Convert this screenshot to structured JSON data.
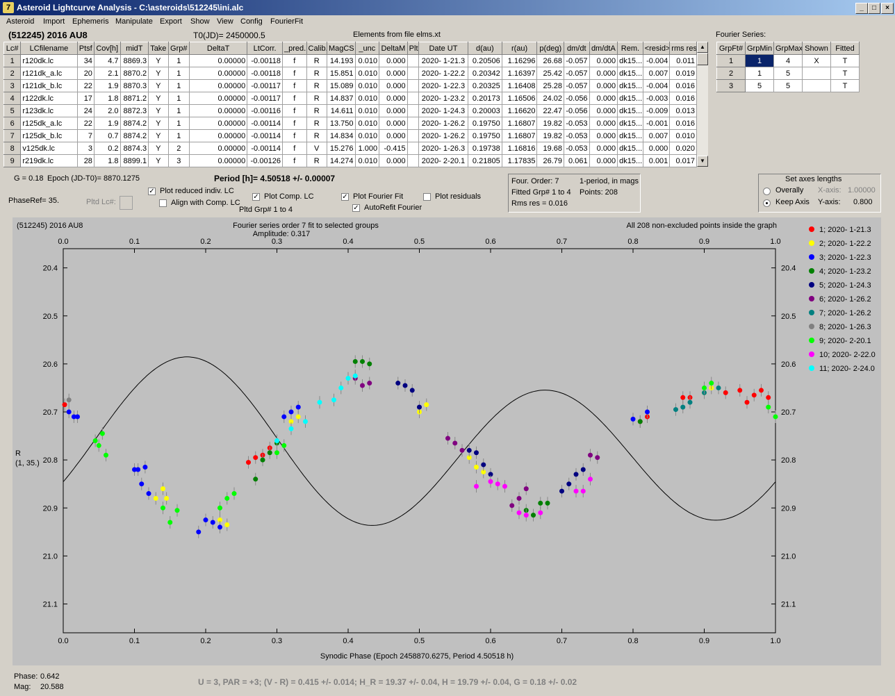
{
  "window": {
    "title": "Asteroid Lightcurve Analysis - C:\\asteroids\\512245\\ini.alc",
    "icon_label": "7"
  },
  "menu": [
    "Asteroid",
    "Import",
    "Ephemeris",
    "Manipulate",
    "Export",
    "Show",
    "View",
    "Config",
    "FourierFit"
  ],
  "header": {
    "asteroid": "(512245) 2016 AU8",
    "t0": "T0(JD)= 2450000.5",
    "elements": "Elements from file elms.xt",
    "fourier_series_label": "Fourier Series:"
  },
  "lc_table": {
    "columns": [
      "Lc#",
      "LCfilename",
      "Ptsf",
      "Cov[h]",
      "midT",
      "Take",
      "Grp#",
      "DeltaT",
      "LtCorr.",
      "_pred.",
      "Calib.",
      "MagCS",
      "_unc",
      "DeltaM",
      "Plt",
      "Date UT",
      "d(au)",
      "r(au)",
      "p(deg)",
      "dm/dt",
      "dm/dtA",
      "Rem.",
      "<resid>",
      "rms res"
    ],
    "rows": [
      [
        "1",
        "r120dk.lc",
        "34",
        "4.7",
        "8869.3",
        "Y",
        "1",
        "0.00000",
        "-0.00118",
        "f",
        "R",
        "14.193",
        "0.010",
        "0.000",
        "",
        "2020- 1-21.3",
        "0.20506",
        "1.16296",
        "26.68",
        "-0.057",
        "0.000",
        "dk15...",
        "-0.004",
        "0.011"
      ],
      [
        "2",
        "r121dk_a.lc",
        "20",
        "2.1",
        "8870.2",
        "Y",
        "1",
        "0.00000",
        "-0.00118",
        "f",
        "R",
        "15.851",
        "0.010",
        "0.000",
        "",
        "2020- 1-22.2",
        "0.20342",
        "1.16397",
        "25.42",
        "-0.057",
        "0.000",
        "dk15...",
        "0.007",
        "0.019"
      ],
      [
        "3",
        "r121dk_b.lc",
        "22",
        "1.9",
        "8870.3",
        "Y",
        "1",
        "0.00000",
        "-0.00117",
        "f",
        "R",
        "15.089",
        "0.010",
        "0.000",
        "",
        "2020- 1-22.3",
        "0.20325",
        "1.16408",
        "25.28",
        "-0.057",
        "0.000",
        "dk15...",
        "-0.004",
        "0.016"
      ],
      [
        "4",
        "r122dk.lc",
        "17",
        "1.8",
        "8871.2",
        "Y",
        "1",
        "0.00000",
        "-0.00117",
        "f",
        "R",
        "14.837",
        "0.010",
        "0.000",
        "",
        "2020- 1-23.2",
        "0.20173",
        "1.16506",
        "24.02",
        "-0.056",
        "0.000",
        "dk15...",
        "-0.003",
        "0.016"
      ],
      [
        "5",
        "r123dk.lc",
        "24",
        "2.0",
        "8872.3",
        "Y",
        "1",
        "0.00000",
        "-0.00116",
        "f",
        "R",
        "14.611",
        "0.010",
        "0.000",
        "",
        "2020- 1-24.3",
        "0.20003",
        "1.16620",
        "22.47",
        "-0.056",
        "0.000",
        "dk15...",
        "-0.009",
        "0.013"
      ],
      [
        "6",
        "r125dk_a.lc",
        "22",
        "1.9",
        "8874.2",
        "Y",
        "1",
        "0.00000",
        "-0.00114",
        "f",
        "R",
        "13.750",
        "0.010",
        "0.000",
        "",
        "2020- 1-26.2",
        "0.19750",
        "1.16807",
        "19.82",
        "-0.053",
        "0.000",
        "dk15...",
        "-0.001",
        "0.016"
      ],
      [
        "7",
        "r125dk_b.lc",
        "7",
        "0.7",
        "8874.2",
        "Y",
        "1",
        "0.00000",
        "-0.00114",
        "f",
        "R",
        "14.834",
        "0.010",
        "0.000",
        "",
        "2020- 1-26.2",
        "0.19750",
        "1.16807",
        "19.82",
        "-0.053",
        "0.000",
        "dk15...",
        "0.007",
        "0.010"
      ],
      [
        "8",
        "v125dk.lc",
        "3",
        "0.2",
        "8874.3",
        "Y",
        "2",
        "0.00000",
        "-0.00114",
        "f",
        "V",
        "15.276",
        "1.000",
        "-0.415",
        "",
        "2020- 1-26.3",
        "0.19738",
        "1.16816",
        "19.68",
        "-0.053",
        "0.000",
        "dk15...",
        "0.000",
        "0.020"
      ],
      [
        "9",
        "r219dk.lc",
        "28",
        "1.8",
        "8899.1",
        "Y",
        "3",
        "0.00000",
        "-0.00126",
        "f",
        "R",
        "14.274",
        "0.010",
        "0.000",
        "",
        "2020- 2-20.1",
        "0.21805",
        "1.17835",
        "26.79",
        "0.061",
        "0.000",
        "dk15...",
        "0.001",
        "0.017"
      ]
    ]
  },
  "fourier_table": {
    "columns": [
      "GrpFt#",
      "GrpMin",
      "GrpMax",
      "Shown",
      "Fitted"
    ],
    "rows": [
      [
        "1",
        "1",
        "4",
        "X",
        "T"
      ],
      [
        "2",
        "1",
        "5",
        "",
        "T"
      ],
      [
        "3",
        "5",
        "5",
        "",
        "T"
      ]
    ]
  },
  "controls": {
    "g_value": "G = 0.18",
    "epoch": "Epoch (JD-T0)= 8870.1275",
    "period": "Period [h]= 4.50518 +/- 0.00007",
    "phaseref": "PhaseRef= 35.",
    "pltd_lc": "Pltd Lc#:",
    "plot_reduced": "Plot reduced indiv. LC",
    "align_comp": "Align with Comp. LC",
    "plot_comp": "Plot Comp. LC",
    "pltd_grp": "Pltd Grp#  1   to   4",
    "plot_fourier": "Plot Fourier Fit",
    "autorefit": "AutoRefit Fourier",
    "plot_residuals": "Plot residuals"
  },
  "fit_info": {
    "order": "Four. Order:  7",
    "mode": "1-period, in mags",
    "fitted": "Fitted Grp# 1 to 4",
    "points": "Points: 208",
    "rms": "Rms res     = 0.016"
  },
  "axes_box": {
    "title": "Set axes lengths",
    "overally": "Overally",
    "keep_axis": "Keep Axis",
    "x_axis_label": "X-axis:",
    "x_axis_value": "1.00000",
    "y_axis_label": "Y-axis:",
    "y_axis_value": "0.800"
  },
  "plot": {
    "name": "(512245) 2016 AU8",
    "fit_title": "Fourier series order 7 fit to selected groups",
    "amplitude": "Amplitude: 0.317",
    "points_note": "All 208 non-excluded points inside the graph",
    "ylabel": "R",
    "ylabel2": "(1, 35.)",
    "xlabel": "Synodic Phase (Epoch 2458870.6275, Period 4.50518 h)"
  },
  "chart_data": {
    "type": "scatter",
    "xlim": [
      0.0,
      1.0
    ],
    "ylim": [
      21.16,
      20.36
    ],
    "x_ticks": [
      "0.0",
      "0.1",
      "0.2",
      "0.3",
      "0.4",
      "0.5",
      "0.6",
      "0.7",
      "0.8",
      "0.9",
      "1.0"
    ],
    "y_ticks": [
      "20.4",
      "20.5",
      "20.6",
      "20.7",
      "20.8",
      "20.9",
      "21.0",
      "21.1"
    ],
    "legend_position": "right",
    "series": [
      {
        "name": "1; 2020- 1-21.3",
        "color": "#ff0000",
        "points": [
          [
            0.002,
            20.685
          ],
          [
            0.26,
            20.805
          ],
          [
            0.27,
            20.795
          ],
          [
            0.28,
            20.79
          ],
          [
            0.29,
            20.775
          ],
          [
            0.81,
            20.72
          ],
          [
            0.82,
            20.71
          ],
          [
            0.87,
            20.67
          ],
          [
            0.88,
            20.67
          ],
          [
            0.93,
            20.66
          ],
          [
            0.95,
            20.655
          ],
          [
            0.96,
            20.68
          ],
          [
            0.97,
            20.665
          ],
          [
            0.98,
            20.655
          ],
          [
            0.99,
            20.67
          ]
        ]
      },
      {
        "name": "2; 2020- 1-22.2",
        "color": "#ffff00",
        "points": [
          [
            0.13,
            20.88
          ],
          [
            0.14,
            20.86
          ],
          [
            0.145,
            20.88
          ],
          [
            0.22,
            20.925
          ],
          [
            0.23,
            20.935
          ],
          [
            0.32,
            20.72
          ],
          [
            0.33,
            20.71
          ],
          [
            0.5,
            20.7
          ],
          [
            0.51,
            20.685
          ],
          [
            0.57,
            20.795
          ],
          [
            0.58,
            20.815
          ],
          [
            0.59,
            20.825
          ],
          [
            0.9,
            20.66
          ],
          [
            0.91,
            20.65
          ]
        ]
      },
      {
        "name": "3; 2020- 1-22.3",
        "color": "#0000ff",
        "points": [
          [
            0.008,
            20.7
          ],
          [
            0.015,
            20.71
          ],
          [
            0.02,
            20.71
          ],
          [
            0.1,
            20.82
          ],
          [
            0.105,
            20.82
          ],
          [
            0.11,
            20.85
          ],
          [
            0.115,
            20.815
          ],
          [
            0.12,
            20.87
          ],
          [
            0.19,
            20.95
          ],
          [
            0.2,
            20.925
          ],
          [
            0.21,
            20.93
          ],
          [
            0.22,
            20.94
          ],
          [
            0.31,
            20.71
          ],
          [
            0.32,
            20.7
          ],
          [
            0.33,
            20.69
          ],
          [
            0.8,
            20.715
          ],
          [
            0.82,
            20.7
          ]
        ]
      },
      {
        "name": "4; 2020- 1-23.2",
        "color": "#008000",
        "points": [
          [
            0.27,
            20.84
          ],
          [
            0.28,
            20.8
          ],
          [
            0.29,
            20.785
          ],
          [
            0.3,
            20.765
          ],
          [
            0.41,
            20.595
          ],
          [
            0.42,
            20.595
          ],
          [
            0.43,
            20.6
          ],
          [
            0.65,
            20.905
          ],
          [
            0.66,
            20.915
          ],
          [
            0.67,
            20.89
          ],
          [
            0.68,
            20.89
          ],
          [
            0.81,
            20.72
          ]
        ]
      },
      {
        "name": "5; 2020- 1-24.3",
        "color": "#000080",
        "points": [
          [
            0.47,
            20.64
          ],
          [
            0.48,
            20.645
          ],
          [
            0.49,
            20.655
          ],
          [
            0.5,
            20.69
          ],
          [
            0.57,
            20.78
          ],
          [
            0.58,
            20.785
          ],
          [
            0.59,
            20.81
          ],
          [
            0.6,
            20.83
          ],
          [
            0.7,
            20.865
          ],
          [
            0.71,
            20.85
          ],
          [
            0.72,
            20.83
          ],
          [
            0.73,
            20.82
          ]
        ]
      },
      {
        "name": "6; 2020- 1-26.2",
        "color": "#800080",
        "points": [
          [
            0.41,
            20.63
          ],
          [
            0.42,
            20.645
          ],
          [
            0.43,
            20.64
          ],
          [
            0.54,
            20.755
          ],
          [
            0.55,
            20.765
          ],
          [
            0.56,
            20.78
          ],
          [
            0.63,
            20.895
          ],
          [
            0.64,
            20.88
          ],
          [
            0.65,
            20.86
          ],
          [
            0.74,
            20.79
          ],
          [
            0.75,
            20.795
          ]
        ]
      },
      {
        "name": "7; 2020- 1-26.2",
        "color": "#008080",
        "points": [
          [
            0.86,
            20.695
          ],
          [
            0.87,
            20.69
          ],
          [
            0.88,
            20.68
          ],
          [
            0.9,
            20.66
          ],
          [
            0.92,
            20.65
          ]
        ]
      },
      {
        "name": "8; 2020- 1-26.3",
        "color": "#808080",
        "points": [
          [
            0.008,
            20.675
          ]
        ]
      },
      {
        "name": "9; 2020- 2-20.1",
        "color": "#00ff00",
        "points": [
          [
            0.045,
            20.76
          ],
          [
            0.05,
            20.77
          ],
          [
            0.055,
            20.745
          ],
          [
            0.06,
            20.79
          ],
          [
            0.14,
            20.9
          ],
          [
            0.15,
            20.93
          ],
          [
            0.16,
            20.905
          ],
          [
            0.22,
            20.9
          ],
          [
            0.23,
            20.88
          ],
          [
            0.24,
            20.87
          ],
          [
            0.3,
            20.785
          ],
          [
            0.31,
            20.77
          ],
          [
            0.9,
            20.65
          ],
          [
            0.91,
            20.64
          ],
          [
            0.99,
            20.69
          ],
          [
            1.0,
            20.71
          ]
        ]
      },
      {
        "name": "10; 2020- 2-22.0",
        "color": "#ff00ff",
        "points": [
          [
            0.58,
            20.855
          ],
          [
            0.6,
            20.845
          ],
          [
            0.61,
            20.85
          ],
          [
            0.62,
            20.855
          ],
          [
            0.64,
            20.91
          ],
          [
            0.65,
            20.915
          ],
          [
            0.67,
            20.91
          ],
          [
            0.72,
            20.865
          ],
          [
            0.73,
            20.865
          ],
          [
            0.74,
            20.84
          ]
        ]
      },
      {
        "name": "11; 2020- 2-24.0",
        "color": "#00ffff",
        "points": [
          [
            0.3,
            20.76
          ],
          [
            0.32,
            20.735
          ],
          [
            0.34,
            20.72
          ],
          [
            0.36,
            20.68
          ],
          [
            0.38,
            20.675
          ],
          [
            0.39,
            20.65
          ],
          [
            0.4,
            20.63
          ],
          [
            0.41,
            20.625
          ]
        ]
      }
    ],
    "fit_curve": {
      "mean": 20.775,
      "amp": 0.155,
      "phase_shift": 0.175,
      "harmonic": 2
    }
  },
  "status": {
    "phase_label": "Phase:",
    "phase_value": "0.642",
    "mag_label": "Mag:",
    "mag_value": "20.588",
    "solution": "U = 3, PAR = +3; (V - R) = 0.415 +/- 0.014; H_R = 19.37 +/- 0.04, H = 19.79 +/- 0.04, G = 0.18 +/- 0.02"
  }
}
